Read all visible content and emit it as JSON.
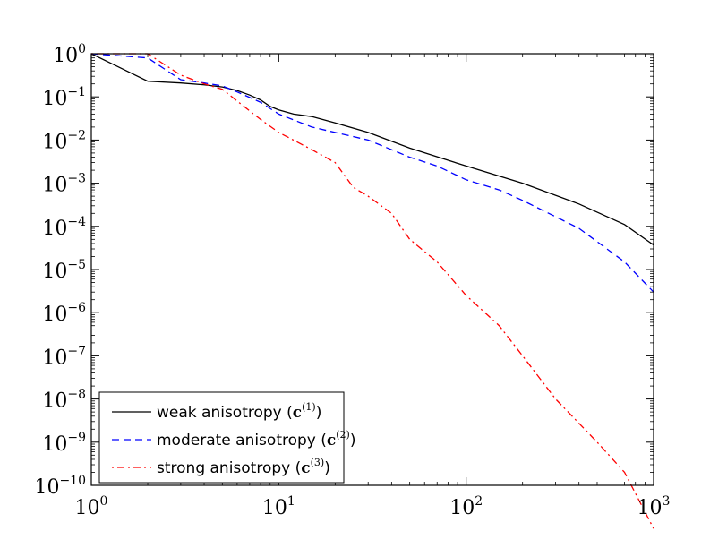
{
  "chart_data": {
    "type": "line",
    "xscale": "log",
    "yscale": "log",
    "xlim": [
      1,
      1000
    ],
    "ylim": [
      1e-10,
      1
    ],
    "x_ticks": [
      {
        "base": "10",
        "exp": "0"
      },
      {
        "base": "10",
        "exp": "1"
      },
      {
        "base": "10",
        "exp": "2"
      },
      {
        "base": "10",
        "exp": "3"
      }
    ],
    "y_ticks": [
      {
        "base": "10",
        "exp": "0"
      },
      {
        "base": "10",
        "exp": "−1"
      },
      {
        "base": "10",
        "exp": "−2"
      },
      {
        "base": "10",
        "exp": "−3"
      },
      {
        "base": "10",
        "exp": "−4"
      },
      {
        "base": "10",
        "exp": "−5"
      },
      {
        "base": "10",
        "exp": "−6"
      },
      {
        "base": "10",
        "exp": "−7"
      },
      {
        "base": "10",
        "exp": "−8"
      },
      {
        "base": "10",
        "exp": "−9"
      },
      {
        "base": "10",
        "exp": "−10"
      }
    ],
    "legend_position": "lower-left",
    "series": [
      {
        "name": "weak anisotropy",
        "label_text": "weak anisotropy (",
        "label_symbol": "c",
        "label_sup": "(1)",
        "label_close": ")",
        "color": "#000000",
        "dash": "",
        "x": [
          1,
          2,
          3,
          4,
          5,
          6,
          7,
          8,
          9,
          10,
          12,
          15,
          20,
          30,
          50,
          100,
          200,
          400,
          700,
          1000
        ],
        "y": [
          1,
          0.23,
          0.21,
          0.19,
          0.17,
          0.14,
          0.11,
          0.085,
          0.06,
          0.05,
          0.04,
          0.035,
          0.025,
          0.015,
          0.0065,
          0.0025,
          0.001,
          0.00033,
          0.00011,
          3.7e-05
        ]
      },
      {
        "name": "moderate anisotropy",
        "label_text": "moderate anisotropy (",
        "label_symbol": "c",
        "label_sup": "(2)",
        "label_close": ")",
        "color": "#0000ff",
        "dash": "8,5",
        "x": [
          1,
          2,
          3,
          4,
          5,
          6,
          8,
          10,
          15,
          20,
          30,
          50,
          70,
          100,
          150,
          200,
          400,
          700,
          1000
        ],
        "y": [
          1,
          0.8,
          0.25,
          0.21,
          0.18,
          0.13,
          0.075,
          0.04,
          0.02,
          0.015,
          0.01,
          0.004,
          0.0025,
          0.0012,
          0.0007,
          0.0004,
          9e-05,
          1.5e-05,
          3e-06
        ]
      },
      {
        "name": "strong anisotropy",
        "label_text": "strong anisotropy (",
        "label_symbol": "c",
        "label_sup": "(3)",
        "label_close": ")",
        "color": "#ff0000",
        "dash": "2,4,8,4",
        "x": [
          1,
          2,
          3,
          4,
          5,
          6,
          8,
          10,
          15,
          20,
          25,
          30,
          40,
          50,
          70,
          100,
          150,
          200,
          300,
          500,
          700,
          1000
        ],
        "y": [
          1,
          1,
          0.32,
          0.2,
          0.15,
          0.08,
          0.03,
          0.015,
          0.006,
          0.003,
          0.0008,
          0.0005,
          0.0002,
          5e-05,
          1.5e-05,
          2.5e-06,
          5e-07,
          1e-07,
          1e-08,
          1e-09,
          2e-10,
          1e-11
        ]
      }
    ]
  }
}
